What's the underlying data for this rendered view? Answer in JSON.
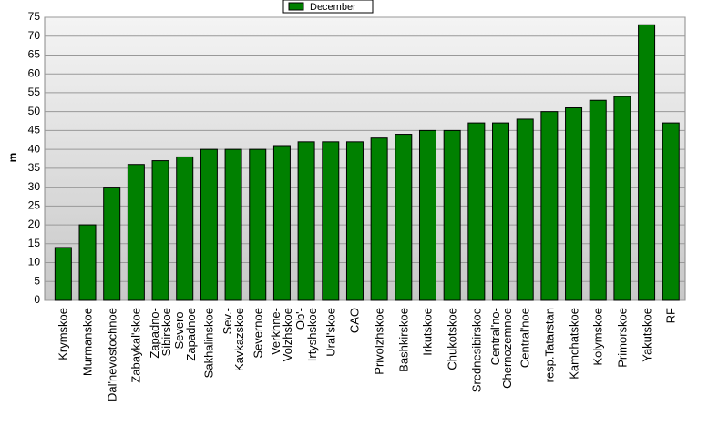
{
  "chart_data": {
    "type": "bar",
    "y_label": "m",
    "categories": [
      "Krymskoe",
      "Murmanskoe",
      "Dal'nevostochnoe",
      "Zabaykal'skoe",
      "Zapadno-\nSibirskoe",
      "Severo-\nZapadnoe",
      "Sakhalinskoe",
      "Sev.-\nKavkazskoe",
      "Severnoe",
      "Verkhne-\nVolzhskoe",
      "Ob'-\nIrtyshskoe",
      "Ural'skoe",
      "CAO",
      "Privolzhskoe",
      "Bashkirskoe",
      "Irkutskoe",
      "Chukotskoe",
      "Srednesibirskoe",
      "Central'no-\nChernozemnoe",
      "Central'noe",
      "resp.Tatarstan",
      "Kamchatskoe",
      "Kolymskoe",
      "Primorskoe",
      "Yakutskoe",
      "RF"
    ],
    "series": [
      {
        "name": "December",
        "color": "#008000",
        "values": [
          14,
          20,
          30,
          36,
          37,
          38,
          40,
          40,
          40,
          41,
          42,
          42,
          42,
          43,
          44,
          45,
          45,
          47,
          47,
          48,
          50,
          51,
          53,
          54,
          73,
          47
        ]
      }
    ],
    "ylim": [
      0,
      75
    ],
    "yticks": [
      0,
      5,
      10,
      15,
      20,
      25,
      30,
      35,
      40,
      45,
      50,
      55,
      60,
      65,
      70,
      75
    ],
    "grid": true,
    "legend": "top"
  }
}
